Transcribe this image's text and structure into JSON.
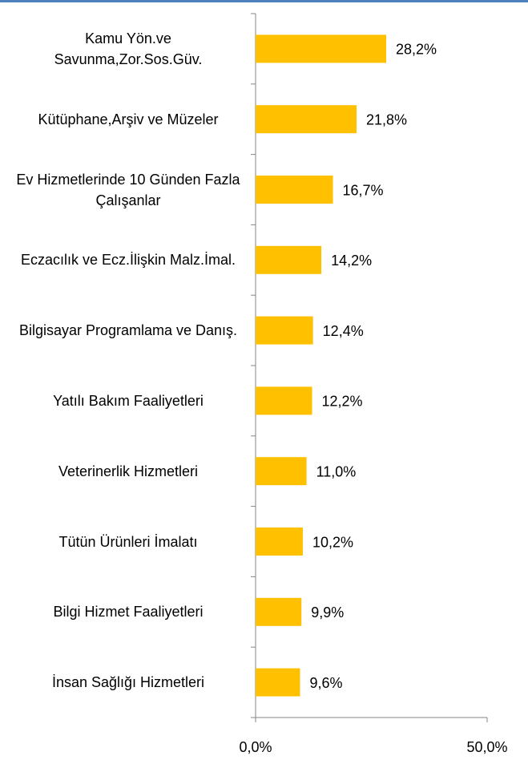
{
  "chart_data": {
    "type": "barh",
    "categories": [
      "Kamu Yön.ve Savunma,Zor.Sos.Güv.",
      "Kütüphane,Arşiv ve Müzeler",
      "Ev Hizmetlerinde 10 Günden Fazla Çalışanlar",
      "Eczacılık ve Ecz.İlişkin Malz.İmal.",
      "Bilgisayar Programlama ve Danış.",
      "Yatılı Bakım Faaliyetleri",
      "Veterinerlik Hizmetleri",
      "Tütün Ürünleri İmalatı",
      "Bilgi Hizmet Faaliyetleri",
      "İnsan Sağlığı Hizmetleri"
    ],
    "values": [
      28.2,
      21.8,
      16.7,
      14.2,
      12.4,
      12.2,
      11.0,
      10.2,
      9.9,
      9.6
    ],
    "value_labels": [
      "28,2%",
      "21,8%",
      "16,7%",
      "14,2%",
      "12,4%",
      "12,2%",
      "11,0%",
      "10,2%",
      "9,9%",
      "9,6%"
    ],
    "color": "#ffc000",
    "xlim": [
      0,
      50
    ],
    "xticks": [
      {
        "value": 0,
        "label": "0,0%"
      },
      {
        "value": 50,
        "label": "50,0%"
      }
    ]
  }
}
